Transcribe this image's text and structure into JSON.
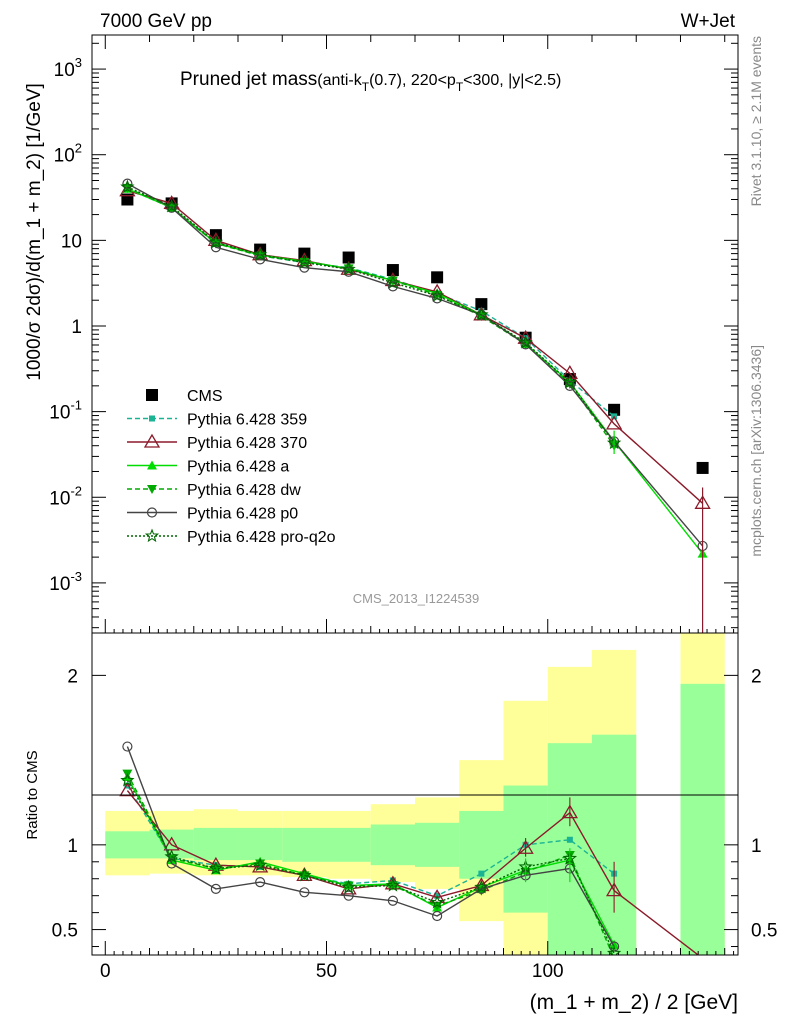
{
  "header": {
    "left": "7000 GeV pp",
    "right": "W+Jet"
  },
  "title": {
    "main": "Pruned jet mass",
    "cuts": "(anti-k_T(0.7), 220<p_T<300, |y|<2.5)"
  },
  "side_labels": {
    "rivet": "Rivet 3.1.10, ≥ 2.1M events",
    "mcplots": "mcplots.cern.ch [arXiv:1306.3436]"
  },
  "watermark": "CMS_2013_I1224539",
  "colors": {
    "band_inner": "#99ff99",
    "band_outer": "#ffff99",
    "cms": "#000000",
    "p359": "#1ab394",
    "p370": "#8b1a2a",
    "pa": "#00dd00",
    "pdw": "#00aa00",
    "pp0": "#444444",
    "pq2o": "#006600"
  },
  "chart_data": [
    {
      "type": "line",
      "panel": "main",
      "ylabel": "1000/σ 2dσ)/d(m_1 + m_2) [1/GeV]",
      "yscale": "log",
      "ylim": [
        0.00026,
        2500
      ],
      "xlim": [
        -3,
        143
      ],
      "ytick_labels": [
        "10^-3",
        "10^-2",
        "10^-1",
        "1",
        "10",
        "10^2",
        "10^3"
      ],
      "x": [
        5,
        15,
        25,
        35,
        45,
        55,
        65,
        75,
        85,
        95,
        105,
        115,
        135
      ],
      "series": [
        {
          "name": "CMS",
          "style": "square",
          "values": [
            30,
            27,
            11.5,
            7.8,
            7.0,
            6.3,
            4.5,
            3.7,
            1.8,
            0.73,
            0.24,
            0.105,
            0.022
          ]
        },
        {
          "name": "Pythia 6.428 359",
          "style": "dash-square",
          "values": [
            40,
            24,
            9.5,
            6.6,
            5.5,
            4.8,
            3.5,
            2.4,
            1.5,
            0.72,
            0.23,
            0.088,
            0.0
          ]
        },
        {
          "name": "Pythia 6.428 370",
          "style": "solid-triangle-open",
          "values": [
            38,
            27,
            10.0,
            6.8,
            5.8,
            4.6,
            3.4,
            2.5,
            1.35,
            0.72,
            0.28,
            0.072,
            0.0085
          ]
        },
        {
          "name": "Pythia 6.428 a",
          "style": "solid-triangle",
          "values": [
            40,
            24,
            9.3,
            6.7,
            5.7,
            4.7,
            3.4,
            2.4,
            1.35,
            0.62,
            0.22,
            0.045,
            0.0022
          ]
        },
        {
          "name": "Pythia 6.428 dw",
          "style": "dash-triangle-down",
          "values": [
            41,
            24,
            9.2,
            6.6,
            5.6,
            4.7,
            3.4,
            2.3,
            1.3,
            0.61,
            0.21,
            0.04,
            0.0
          ]
        },
        {
          "name": "Pythia 6.428 p0",
          "style": "solid-circle-open",
          "values": [
            46,
            24,
            8.3,
            6.0,
            4.8,
            4.3,
            2.9,
            2.1,
            1.35,
            0.61,
            0.2,
            0.045,
            0.0027
          ]
        },
        {
          "name": "Pythia 6.428 pro-q2o",
          "style": "dot-star",
          "values": [
            42,
            25,
            9.5,
            6.8,
            5.5,
            4.6,
            3.2,
            2.25,
            1.35,
            0.64,
            0.22,
            0.043,
            0.0
          ]
        }
      ]
    },
    {
      "type": "line",
      "panel": "ratio",
      "ylabel": "Ratio to CMS",
      "xlabel": "(m_1 + m_2) / 2 [GeV]",
      "ylim": [
        0.35,
        2.25
      ],
      "xlim": [
        -3,
        143
      ],
      "xtick_labels": [
        "0",
        "50",
        "100"
      ],
      "ytick_labels": [
        "0.5",
        "1",
        "2"
      ],
      "bands": {
        "x_edges": [
          0,
          10,
          20,
          30,
          40,
          50,
          60,
          70,
          80,
          90,
          100,
          110,
          120,
          130,
          140
        ],
        "inner": [
          [
            0.92,
            1.08
          ],
          [
            0.92,
            1.09
          ],
          [
            0.91,
            1.1
          ],
          [
            0.91,
            1.1
          ],
          [
            0.9,
            1.1
          ],
          [
            0.9,
            1.1
          ],
          [
            0.88,
            1.12
          ],
          [
            0.87,
            1.13
          ],
          [
            0.8,
            1.2
          ],
          [
            0.6,
            1.35
          ],
          [
            0.35,
            1.6
          ],
          [
            0.35,
            1.65
          ],
          null,
          [
            0.35,
            1.95
          ]
        ],
        "outer": [
          [
            0.82,
            1.2
          ],
          [
            0.83,
            1.2
          ],
          [
            0.82,
            1.21
          ],
          [
            0.82,
            1.2
          ],
          [
            0.81,
            1.2
          ],
          [
            0.8,
            1.2
          ],
          [
            0.78,
            1.24
          ],
          [
            0.74,
            1.28
          ],
          [
            0.55,
            1.5
          ],
          [
            0.35,
            1.85
          ],
          [
            0.35,
            2.05
          ],
          [
            0.35,
            2.15
          ],
          null,
          [
            0.35,
            2.25
          ]
        ]
      },
      "series": [
        {
          "name": "Pythia 6.428 359",
          "values": [
            1.35,
            0.92,
            0.88,
            0.87,
            0.82,
            0.77,
            0.79,
            0.7,
            0.83,
            1.0,
            1.03,
            0.83,
            null
          ]
        },
        {
          "name": "Pythia 6.428 370",
          "values": [
            1.32,
            1.0,
            0.88,
            0.87,
            0.82,
            0.74,
            0.77,
            0.69,
            0.76,
            0.98,
            1.19,
            0.73,
            0.33
          ]
        },
        {
          "name": "Pythia 6.428 a",
          "values": [
            1.4,
            0.91,
            0.85,
            0.9,
            0.83,
            0.76,
            0.77,
            0.63,
            0.75,
            0.85,
            0.91,
            0.41,
            null
          ]
        },
        {
          "name": "Pythia 6.428 dw",
          "values": [
            1.42,
            0.92,
            0.86,
            0.89,
            0.82,
            0.76,
            0.76,
            0.64,
            0.73,
            0.84,
            0.94,
            0.33,
            null
          ]
        },
        {
          "name": "Pythia 6.428 p0",
          "values": [
            1.58,
            0.89,
            0.74,
            0.78,
            0.72,
            0.7,
            0.67,
            0.58,
            0.74,
            0.82,
            0.86,
            0.4,
            null
          ]
        },
        {
          "name": "Pythia 6.428 pro-q2o",
          "values": [
            1.38,
            0.93,
            0.86,
            0.88,
            0.82,
            0.75,
            0.76,
            0.66,
            0.75,
            0.87,
            0.92,
            0.36,
            null
          ]
        }
      ]
    }
  ]
}
